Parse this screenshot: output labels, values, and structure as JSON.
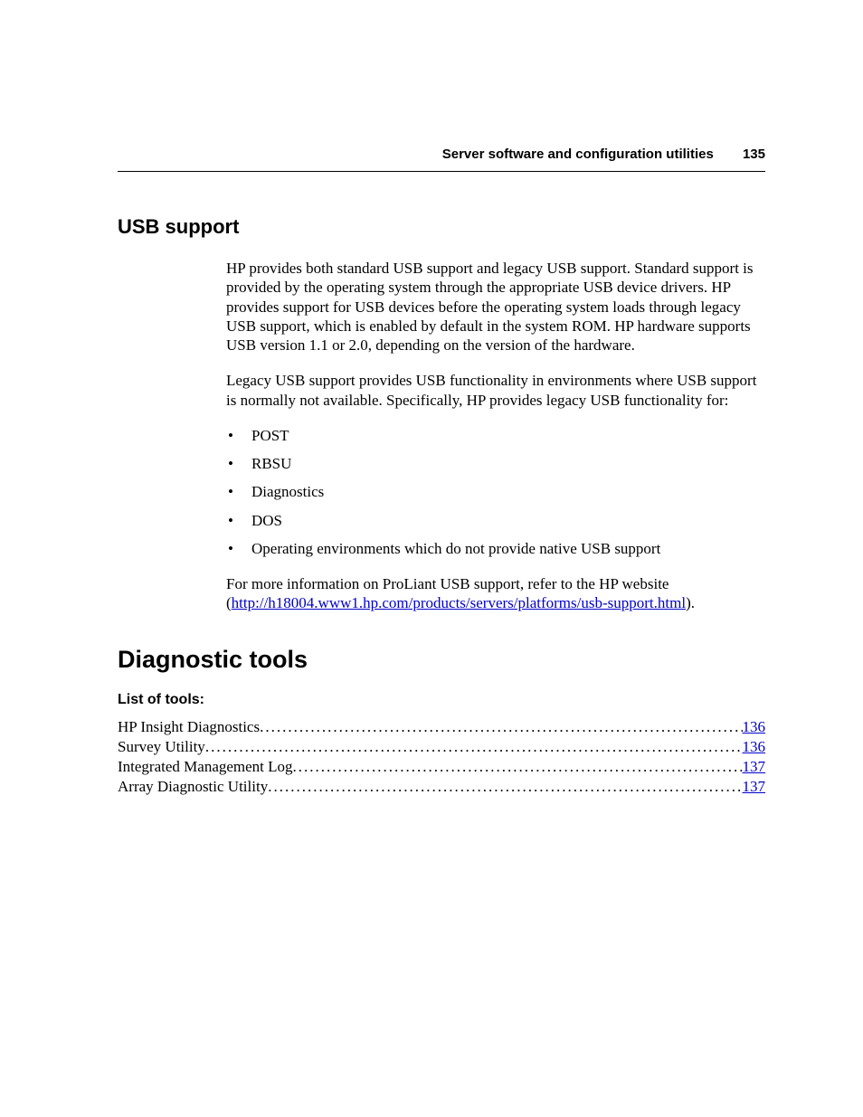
{
  "header": {
    "title": "Server software and configuration utilities",
    "page_number": "135"
  },
  "usb_section": {
    "heading": "USB support",
    "para1": "HP provides both standard USB support and legacy USB support. Standard support is provided by the operating system through the appropriate USB device drivers. HP provides support for USB devices before the operating system loads through legacy USB support, which is enabled by default in the system ROM. HP hardware supports USB version 1.1 or 2.0, depending on the version of the hardware.",
    "para2": "Legacy USB support provides USB functionality in environments where USB support is normally not available. Specifically, HP provides legacy USB functionality for:",
    "bullets": [
      "POST",
      "RBSU",
      "Diagnostics",
      "DOS",
      "Operating environments which do not provide native USB support"
    ],
    "para3_pre": "For more information on ProLiant USB support, refer to the HP website (",
    "para3_link": "http://h18004.www1.hp.com/products/servers/platforms/usb-support.html",
    "para3_post": ")."
  },
  "diag_section": {
    "heading": "Diagnostic tools",
    "subheading": "List of tools:",
    "toc": [
      {
        "label": "HP Insight Diagnostics",
        "page": "136"
      },
      {
        "label": "Survey Utility",
        "page": "136"
      },
      {
        "label": "Integrated Management Log",
        "page": "137"
      },
      {
        "label": "Array Diagnostic Utility",
        "page": "137"
      }
    ]
  }
}
